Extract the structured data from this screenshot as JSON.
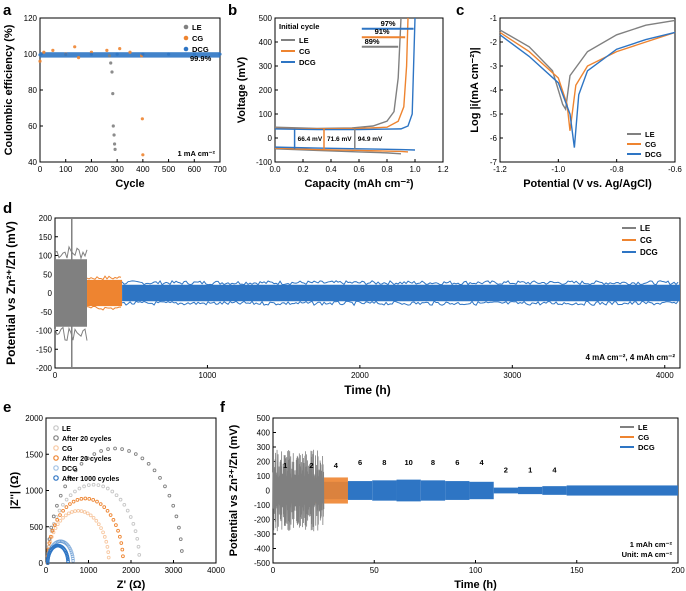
{
  "colors": {
    "LE": "#808080",
    "CG": "#ee8430",
    "DCG": "#2e75c4"
  },
  "chart_data": [
    {
      "panel": "a",
      "type": "scatter",
      "xlabel": "Cycle",
      "ylabel": "Coulombic efficiency (%)",
      "xlim": [
        0,
        700
      ],
      "ylim": [
        40,
        120
      ],
      "xticks": [
        "0",
        "100",
        "200",
        "300",
        "400",
        "500",
        "600",
        "700"
      ],
      "yticks": [
        "40",
        "60",
        "80",
        "100",
        "120"
      ],
      "annotations": [
        "99.9%",
        "1 mA cm⁻²"
      ],
      "legend": "top-right",
      "series": [
        {
          "name": "LE",
          "x": [
            270,
            275,
            280,
            283,
            285,
            288,
            290,
            292
          ],
          "y": [
            99,
            95,
            90,
            78,
            60,
            55,
            50,
            47
          ]
        },
        {
          "name": "CG",
          "x": [
            0,
            15,
            50,
            100,
            135,
            150,
            200,
            260,
            310,
            350,
            395,
            398,
            400
          ],
          "y": [
            96,
            101,
            102,
            100,
            104,
            98,
            101,
            102,
            103,
            101,
            99,
            64,
            44
          ]
        },
        {
          "name": "DCG",
          "x": [
            0,
            100,
            200,
            300,
            400,
            500,
            600,
            700
          ],
          "y": [
            99.5,
            99.8,
            99.9,
            99.9,
            99.9,
            99.9,
            99.9,
            99.9
          ]
        }
      ]
    },
    {
      "panel": "b",
      "type": "line",
      "xlabel": "Capacity (mAh cm⁻²)",
      "ylabel": "Voltage (mV)",
      "xlim": [
        0,
        1.2
      ],
      "ylim": [
        -100,
        500
      ],
      "xticks": [
        "0.0",
        "0.2",
        "0.4",
        "0.6",
        "0.8",
        "1.0",
        "1.2"
      ],
      "yticks": [
        "-100",
        "0",
        "100",
        "200",
        "300",
        "400",
        "500"
      ],
      "legend_title": "Initial cycle",
      "efficiencies": [
        "97%",
        "91%",
        "89%"
      ],
      "overpotentials": [
        "66.4 mV",
        "71.6 mV",
        "94.9 mV"
      ],
      "series": [
        {
          "name": "LE",
          "x": [
            0,
            0.3,
            0.55,
            0.7,
            0.8,
            0.85,
            0.88,
            0.9
          ],
          "y": [
            45,
            40,
            42,
            50,
            70,
            110,
            250,
            500
          ]
        },
        {
          "name": "CG",
          "x": [
            0,
            0.3,
            0.6,
            0.8,
            0.88,
            0.92,
            0.94,
            0.95
          ],
          "y": [
            40,
            38,
            40,
            45,
            70,
            130,
            300,
            500
          ]
        },
        {
          "name": "DCG",
          "x": [
            0,
            0.3,
            0.6,
            0.9,
            0.95,
            0.98,
            0.99,
            1.0
          ],
          "y": [
            38,
            35,
            35,
            38,
            50,
            100,
            300,
            500
          ]
        },
        {
          "name": "LE discharge",
          "x": [
            0,
            0.3,
            0.6,
            0.8,
            0.9
          ],
          "y": [
            -45,
            -52,
            -58,
            -62,
            -66
          ]
        },
        {
          "name": "CG discharge",
          "x": [
            0,
            0.3,
            0.6,
            0.9,
            0.95
          ],
          "y": [
            -42,
            -48,
            -52,
            -56,
            -58
          ]
        },
        {
          "name": "DCG discharge",
          "x": [
            0,
            0.3,
            0.6,
            0.9,
            1.0
          ],
          "y": [
            -38,
            -42,
            -45,
            -48,
            -50
          ]
        }
      ]
    },
    {
      "panel": "c",
      "type": "line",
      "xlabel": "Potential (V vs. Ag/AgCl)",
      "ylabel": "Log |i(mA cm⁻²)|",
      "xlim": [
        -1.2,
        -0.6
      ],
      "ylim": [
        -7,
        -1
      ],
      "xticks": [
        "-1.2",
        "-1.0",
        "-0.8",
        "-0.6"
      ],
      "yticks": [
        "-1",
        "-2",
        "-3",
        "-4",
        "-5",
        "-6",
        "-7"
      ],
      "legend": "bottom-right",
      "series": [
        {
          "name": "LE",
          "x": [
            -1.2,
            -1.1,
            -1.02,
            -0.985,
            -0.975,
            -0.96,
            -0.9,
            -0.8,
            -0.7,
            -0.6
          ],
          "y": [
            -1.5,
            -2.2,
            -3.2,
            -4.6,
            -4.8,
            -3.4,
            -2.4,
            -1.7,
            -1.3,
            -1.1
          ]
        },
        {
          "name": "CG",
          "x": [
            -1.2,
            -1.1,
            -1.0,
            -0.97,
            -0.96,
            -0.94,
            -0.9,
            -0.8,
            -0.7,
            -0.6
          ],
          "y": [
            -1.6,
            -2.4,
            -3.5,
            -4.6,
            -5.7,
            -3.8,
            -3.0,
            -2.4,
            -2.0,
            -1.6
          ]
        },
        {
          "name": "DCG",
          "x": [
            -1.2,
            -1.1,
            -1.0,
            -0.96,
            -0.945,
            -0.93,
            -0.9,
            -0.8,
            -0.7,
            -0.6
          ],
          "y": [
            -1.7,
            -2.6,
            -3.7,
            -5.0,
            -6.4,
            -4.2,
            -3.2,
            -2.3,
            -1.9,
            -1.6
          ]
        }
      ]
    },
    {
      "panel": "d",
      "type": "area",
      "xlabel": "Time (h)",
      "ylabel": "Potential vs Zn²⁺/Zn (mV)",
      "xlim": [
        0,
        4100
      ],
      "ylim": [
        -200,
        200
      ],
      "xticks": [
        "0",
        "1000",
        "2000",
        "3000",
        "4000"
      ],
      "yticks": [
        "-200",
        "-150",
        "-100",
        "-50",
        "0",
        "50",
        "100",
        "150",
        "200"
      ],
      "annotation": "4 mA cm⁻², 4 mAh cm⁻²",
      "legend": "top-right",
      "series": [
        {
          "name": "LE",
          "start": 0,
          "end": 210,
          "amplitude": 90
        },
        {
          "name": "CG",
          "start": 210,
          "end": 440,
          "amplitude": 35
        },
        {
          "name": "DCG",
          "start": 440,
          "end": 4100,
          "amplitude": 22
        }
      ]
    },
    {
      "panel": "e",
      "type": "scatter",
      "xlabel": "Z' (Ω)",
      "ylabel": "|Z''| (Ω)",
      "xlim": [
        0,
        4000
      ],
      "ylim": [
        0,
        2000
      ],
      "xticks": [
        "0",
        "1000",
        "2000",
        "3000",
        "4000"
      ],
      "yticks": [
        "0",
        "500",
        "1000",
        "1500",
        "2000"
      ],
      "legend": "top-left",
      "series": [
        {
          "name": "LE",
          "center": 1120,
          "radius": 1080,
          "style": "light"
        },
        {
          "name": "After 20 cycles",
          "center": 1625,
          "radius": 1580,
          "style": "grey"
        },
        {
          "name": "CG",
          "center": 760,
          "radius": 720,
          "style": "light-orange"
        },
        {
          "name": "After 20 cycles",
          "center": 925,
          "radius": 890,
          "style": "orange"
        },
        {
          "name": "DCG",
          "center": 340,
          "radius": 300,
          "style": "light-blue"
        },
        {
          "name": "After 1000 cycles",
          "center": 280,
          "radius": 240,
          "style": "blue"
        }
      ]
    },
    {
      "panel": "f",
      "type": "area",
      "xlabel": "Time (h)",
      "ylabel": "Potential vs Zn²⁺/Zn (mV)",
      "xlim": [
        0,
        200
      ],
      "ylim": [
        -500,
        500
      ],
      "xticks": [
        "0",
        "50",
        "100",
        "150",
        "200"
      ],
      "yticks": [
        "-500",
        "-400",
        "-300",
        "-200",
        "-100",
        "0",
        "100",
        "200",
        "300",
        "400",
        "500"
      ],
      "rate_labels": [
        {
          "t": 6,
          "label": "1"
        },
        {
          "t": 19,
          "label": "2"
        },
        {
          "t": 31,
          "label": "4"
        },
        {
          "t": 43,
          "label": "6"
        },
        {
          "t": 55,
          "label": "8"
        },
        {
          "t": 67,
          "label": "10"
        },
        {
          "t": 79,
          "label": "8"
        },
        {
          "t": 91,
          "label": "6"
        },
        {
          "t": 103,
          "label": "4"
        },
        {
          "t": 115,
          "label": "2"
        },
        {
          "t": 127,
          "label": "1"
        },
        {
          "t": 139,
          "label": "4"
        }
      ],
      "annotations": [
        "1 mAh cm⁻²",
        "Unit: mA cm⁻²"
      ],
      "legend": "top-right",
      "series": [
        {
          "name": "LE",
          "start": 0,
          "end": 25,
          "amplitude": 260
        },
        {
          "name": "CG",
          "start": 0,
          "end": 37,
          "amplitude": 90
        },
        {
          "name": "DCG",
          "start": 0,
          "end": 200,
          "amplitude": 45
        }
      ]
    }
  ],
  "panels": {
    "a": "a",
    "b": "b",
    "c": "c",
    "d": "d",
    "e": "e",
    "f": "f"
  }
}
